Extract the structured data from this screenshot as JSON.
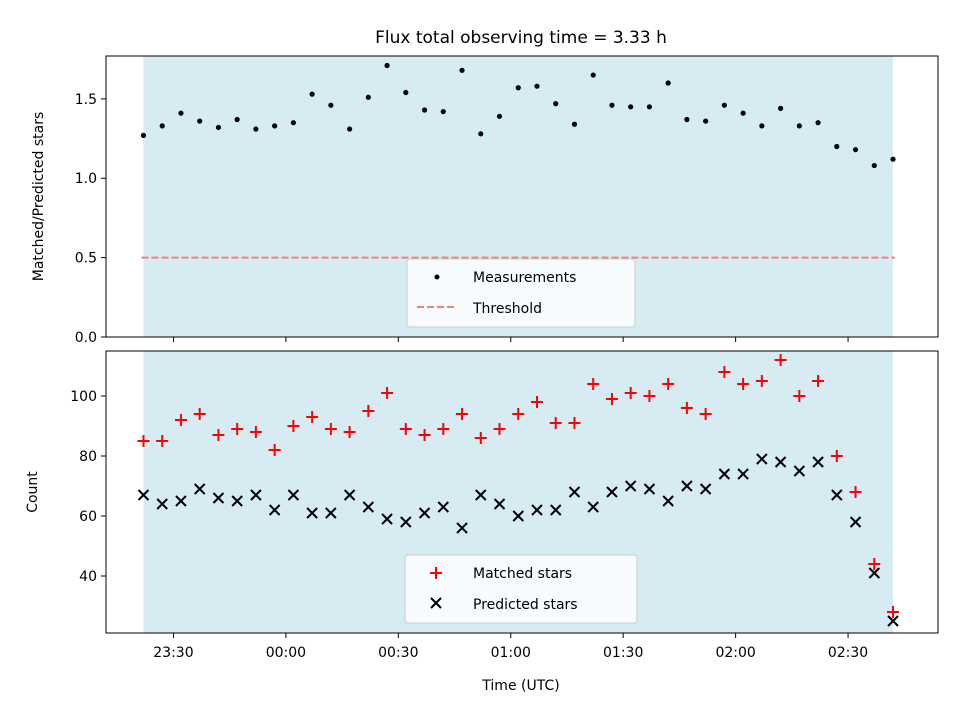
{
  "chart_data": [
    {
      "type": "scatter",
      "title": "Flux total observing time = 3.33 h",
      "xlabel": "",
      "ylabel": "Matched/Predicted stars",
      "ylim": [
        0,
        1.77
      ],
      "yticks": [
        "0.0",
        "0.5",
        "1.0",
        "1.5"
      ],
      "xlim": [
        "23:12",
        "02:54"
      ],
      "x_time_unit": "UTC",
      "shaded_span": [
        "23:22",
        "02:42"
      ],
      "shaded_color": "#add8e6",
      "legend_position": "lower center",
      "series": [
        {
          "name": "Measurements",
          "marker": "dot",
          "color": "#000000",
          "x": [
            "23:22",
            "23:27",
            "23:32",
            "23:37",
            "23:42",
            "23:47",
            "23:52",
            "23:57",
            "00:02",
            "00:07",
            "00:12",
            "00:17",
            "00:22",
            "00:27",
            "00:32",
            "00:37",
            "00:42",
            "00:47",
            "00:52",
            "00:57",
            "01:02",
            "01:07",
            "01:12",
            "01:17",
            "01:22",
            "01:27",
            "01:32",
            "01:37",
            "01:42",
            "01:47",
            "01:52",
            "01:57",
            "02:02",
            "02:07",
            "02:12",
            "02:17",
            "02:22",
            "02:27",
            "02:32",
            "02:37",
            "02:42"
          ],
          "y": [
            1.27,
            1.33,
            1.41,
            1.36,
            1.32,
            1.37,
            1.31,
            1.33,
            1.35,
            1.53,
            1.46,
            1.31,
            1.51,
            1.71,
            1.54,
            1.43,
            1.42,
            1.68,
            1.28,
            1.39,
            1.57,
            1.58,
            1.47,
            1.34,
            1.65,
            1.46,
            1.45,
            1.45,
            1.6,
            1.37,
            1.36,
            1.46,
            1.41,
            1.33,
            1.44,
            1.33,
            1.35,
            1.2,
            1.18,
            1.08,
            1.12
          ]
        },
        {
          "name": "Threshold",
          "marker": "dashed-line",
          "color": "#f08080",
          "y_const": 0.5
        }
      ]
    },
    {
      "type": "scatter",
      "title": "",
      "xlabel": "Time (UTC)",
      "ylabel": "Count",
      "ylim": [
        21,
        115
      ],
      "yticks": [
        "40",
        "60",
        "80",
        "100"
      ],
      "xlim": [
        "23:12",
        "02:54"
      ],
      "xticks": [
        "23:30",
        "00:00",
        "00:30",
        "01:00",
        "01:30",
        "02:00",
        "02:30"
      ],
      "shaded_span": [
        "23:22",
        "02:42"
      ],
      "shaded_color": "#add8e6",
      "legend_position": "lower center",
      "series": [
        {
          "name": "Matched stars",
          "marker": "plus",
          "color": "#ff0000",
          "x": [
            "23:22",
            "23:27",
            "23:32",
            "23:37",
            "23:42",
            "23:47",
            "23:52",
            "23:57",
            "00:02",
            "00:07",
            "00:12",
            "00:17",
            "00:22",
            "00:27",
            "00:32",
            "00:37",
            "00:42",
            "00:47",
            "00:52",
            "00:57",
            "01:02",
            "01:07",
            "01:12",
            "01:17",
            "01:22",
            "01:27",
            "01:32",
            "01:37",
            "01:42",
            "01:47",
            "01:52",
            "01:57",
            "02:02",
            "02:07",
            "02:12",
            "02:17",
            "02:22",
            "02:27",
            "02:32",
            "02:37",
            "02:42"
          ],
          "y": [
            85,
            85,
            92,
            94,
            87,
            89,
            88,
            82,
            90,
            93,
            89,
            88,
            95,
            101,
            89,
            87,
            89,
            94,
            86,
            89,
            94,
            98,
            91,
            91,
            104,
            99,
            101,
            100,
            104,
            96,
            94,
            108,
            104,
            105,
            112,
            100,
            105,
            80,
            68,
            44,
            28
          ]
        },
        {
          "name": "Predicted stars",
          "marker": "x",
          "color": "#000000",
          "x": [
            "23:22",
            "23:27",
            "23:32",
            "23:37",
            "23:42",
            "23:47",
            "23:52",
            "23:57",
            "00:02",
            "00:07",
            "00:12",
            "00:17",
            "00:22",
            "00:27",
            "00:32",
            "00:37",
            "00:42",
            "00:47",
            "00:52",
            "00:57",
            "01:02",
            "01:07",
            "01:12",
            "01:17",
            "01:22",
            "01:27",
            "01:32",
            "01:37",
            "01:42",
            "01:47",
            "01:52",
            "01:57",
            "02:02",
            "02:07",
            "02:12",
            "02:17",
            "02:22",
            "02:27",
            "02:32",
            "02:37",
            "02:42"
          ],
          "y": [
            67,
            64,
            65,
            69,
            66,
            65,
            67,
            62,
            67,
            61,
            61,
            67,
            63,
            59,
            58,
            61,
            63,
            56,
            67,
            64,
            60,
            62,
            62,
            68,
            63,
            68,
            70,
            69,
            65,
            70,
            69,
            74,
            74,
            79,
            78,
            75,
            78,
            67,
            58,
            41,
            25
          ]
        }
      ]
    }
  ]
}
